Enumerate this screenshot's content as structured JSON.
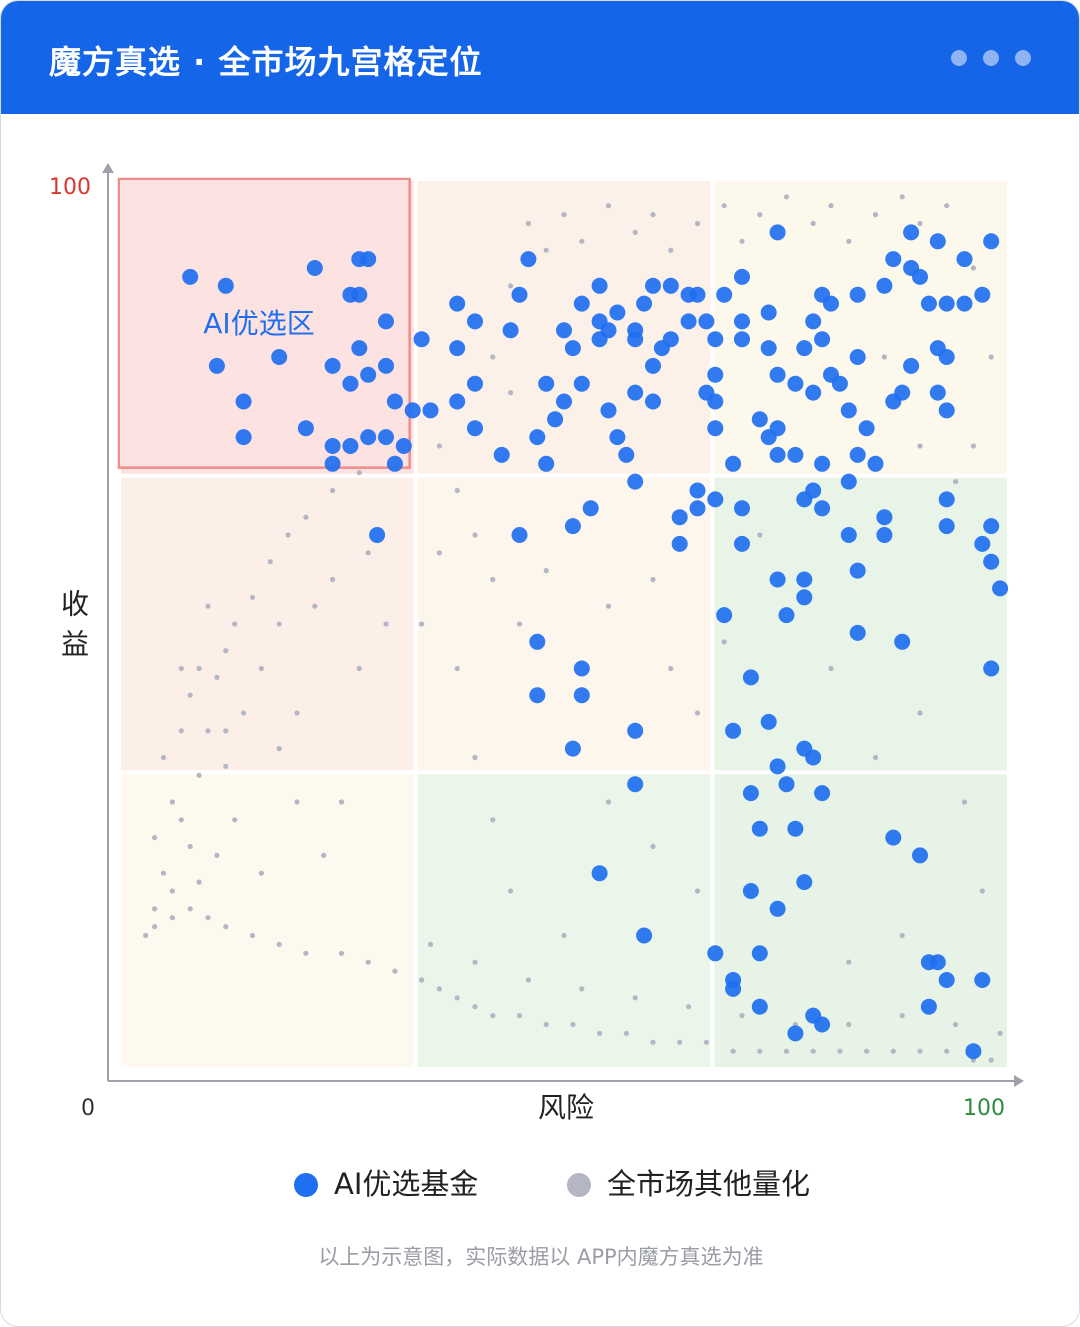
{
  "header": {
    "title": "魔方真选 · 全市场九宫格定位"
  },
  "chart_data": {
    "type": "scatter",
    "x_label": "风险",
    "y_label": "收益",
    "zone_label": "AI优选区",
    "xlim": [
      0,
      100
    ],
    "ylim": [
      0,
      100
    ],
    "xticks": [
      0,
      100
    ],
    "yticks": [
      100
    ],
    "series": [
      {
        "name": "AI优选基金",
        "color": "#1f6ff0",
        "x": [
          8,
          12,
          22,
          27,
          28,
          27,
          26,
          30,
          18,
          11,
          24,
          27,
          28,
          30,
          26,
          14,
          21,
          14,
          24,
          26,
          28,
          30,
          32,
          24,
          31,
          29,
          31,
          33,
          35,
          34,
          38,
          38,
          40,
          38,
          40,
          40,
          43,
          46,
          45,
          44,
          48,
          50,
          47,
          48,
          49,
          51,
          45,
          53,
          52,
          54,
          54,
          55,
          56,
          57,
          58,
          58,
          60,
          63,
          63,
          65,
          65,
          67,
          67,
          69,
          70,
          70,
          74,
          70,
          74,
          77,
          77,
          75,
          68,
          71,
          73,
          69,
          77,
          78,
          74,
          75,
          71,
          79,
          72,
          76,
          87,
          90,
          77,
          71,
          74,
          67,
          69,
          72,
          69,
          72,
          76,
          78,
          79,
          91,
          92,
          93,
          91,
          97,
          96,
          47,
          52,
          52,
          47,
          51,
          58,
          58,
          54,
          59,
          83,
          83,
          88,
          98,
          99,
          98,
          97,
          98,
          93,
          93,
          86,
          86,
          89,
          92,
          98,
          95,
          87,
          89,
          90,
          93,
          95,
          97,
          91,
          86,
          83,
          80,
          79,
          78,
          79,
          77,
          83,
          80,
          81,
          82,
          84,
          85,
          83,
          87,
          88,
          89,
          92,
          93,
          92,
          93,
          65,
          68,
          64,
          62,
          60,
          59,
          58,
          58,
          56,
          55,
          54,
          50,
          51,
          52,
          60,
          61,
          62,
          64,
          66,
          67,
          70,
          73,
          70,
          67,
          66,
          67,
          72,
          73,
          74,
          76,
          79,
          82,
          79,
          82,
          74,
          77,
          78,
          73,
          74,
          76,
          78
        ],
        "values": [
          89,
          88,
          90,
          91,
          91,
          87,
          87,
          84,
          80,
          79,
          79,
          81,
          78,
          79,
          77,
          75,
          72,
          71,
          70,
          70,
          71,
          71,
          70,
          68,
          68,
          60,
          75,
          74,
          74,
          82,
          81,
          86,
          84,
          75,
          77,
          72,
          69,
          91,
          87,
          83,
          77,
          75,
          71,
          68,
          73,
          61,
          60,
          63,
          86,
          88,
          84,
          74,
          71,
          69,
          66,
          76,
          75,
          62,
          59,
          65,
          63,
          72,
          64,
          68,
          63,
          59,
          94,
          89,
          55,
          55,
          53,
          51,
          51,
          44,
          39,
          38,
          36,
          35,
          34,
          32,
          31,
          31,
          27,
          27,
          26,
          24,
          21,
          20,
          18,
          13,
          10,
          13,
          9,
          7,
          4,
          6,
          5,
          12,
          12,
          10,
          7,
          10,
          2,
          48,
          45,
          42,
          42,
          36,
          38,
          32,
          22,
          15,
          56,
          49,
          48,
          45,
          54,
          57,
          59,
          61,
          61,
          64,
          60,
          62,
          94,
          93,
          93,
          91,
          91,
          90,
          89,
          86,
          86,
          87,
          86,
          88,
          87,
          86,
          87,
          84,
          82,
          81,
          80,
          78,
          77,
          74,
          72,
          68,
          69,
          75,
          76,
          79,
          81,
          80,
          76,
          74,
          87,
          87,
          87,
          88,
          88,
          86,
          83,
          82,
          85,
          83,
          82,
          83,
          81,
          77,
          79,
          81,
          82,
          84,
          84,
          82,
          84,
          85,
          82,
          78,
          76,
          75,
          73,
          71,
          72,
          69,
          68,
          66,
          63,
          60,
          69,
          64,
          65,
          81,
          78,
          77,
          76
        ]
      },
      {
        "name": "全市场其他量化",
        "color": "#b4b6c4",
        "x": [
          3,
          4,
          5,
          4,
          6,
          5,
          7,
          8,
          9,
          6,
          8,
          7,
          9,
          10,
          11,
          12,
          13,
          15,
          17,
          19,
          21,
          24,
          27,
          4,
          6,
          8,
          10,
          12,
          15,
          18,
          21,
          25,
          28,
          31,
          9,
          11,
          13,
          12,
          14,
          16,
          18,
          20,
          22,
          24,
          20,
          16,
          25,
          27,
          30,
          28,
          12,
          7,
          10,
          18,
          23,
          36,
          38,
          40,
          42,
          44,
          46,
          48,
          50,
          52,
          55,
          58,
          60,
          62,
          65,
          68,
          70,
          72,
          75,
          78,
          80,
          82,
          85,
          88,
          90,
          93,
          96,
          98,
          96,
          94,
          90,
          86,
          42,
          44,
          36,
          34,
          38,
          40,
          42,
          45,
          48,
          55,
          60,
          62,
          65,
          68,
          72,
          80,
          85,
          90,
          95,
          97,
          88,
          82,
          60,
          55,
          65,
          50,
          44,
          34,
          36,
          38,
          40,
          42,
          45,
          48,
          51,
          54,
          57,
          60,
          63,
          66,
          69,
          72,
          75,
          78,
          81,
          84,
          87,
          90,
          93,
          96,
          98,
          35,
          40,
          46,
          52,
          58,
          64,
          70,
          76,
          82,
          88,
          94,
          99
        ],
        "values": [
          15,
          18,
          22,
          26,
          30,
          35,
          38,
          42,
          45,
          20,
          25,
          28,
          33,
          38,
          44,
          47,
          50,
          53,
          57,
          60,
          62,
          65,
          67,
          16,
          17,
          18,
          17,
          16,
          15,
          14,
          13,
          13,
          12,
          11,
          21,
          24,
          28,
          34,
          40,
          45,
          50,
          40,
          52,
          55,
          30,
          22,
          30,
          45,
          50,
          58,
          38,
          45,
          52,
          36,
          24,
          70,
          65,
          60,
          55,
          88,
          95,
          92,
          96,
          93,
          97,
          94,
          96,
          92,
          95,
          97,
          93,
          96,
          98,
          95,
          97,
          93,
          96,
          98,
          95,
          97,
          90,
          80,
          70,
          66,
          70,
          80,
          80,
          76,
          58,
          50,
          45,
          35,
          28,
          50,
          56,
          52,
          55,
          45,
          40,
          48,
          60,
          45,
          35,
          40,
          30,
          20,
          15,
          12,
          25,
          30,
          20,
          15,
          20,
          10,
          9,
          8,
          7,
          6,
          6,
          5,
          5,
          4,
          4,
          3,
          3,
          3,
          2,
          2,
          2,
          2,
          2,
          2,
          2,
          2,
          2,
          1,
          1,
          14,
          12,
          10,
          9,
          8,
          7,
          6,
          5,
          5,
          6,
          5,
          4
        ]
      }
    ]
  },
  "footer": {
    "note": "以上为示意图，实际数据以 APP内魔方真选为准"
  }
}
